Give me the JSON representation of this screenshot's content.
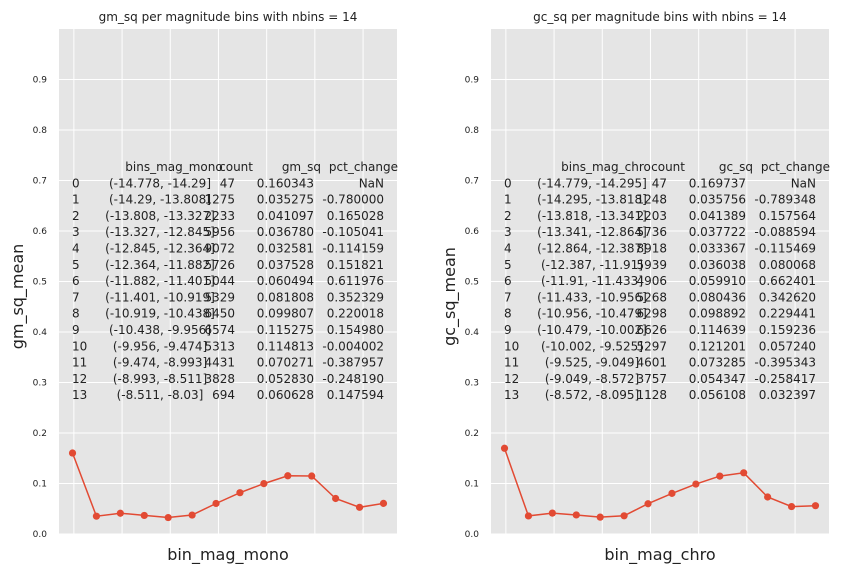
{
  "chart_data": [
    {
      "type": "line",
      "title": "gm_sq per magnitude bins with nbins = 14",
      "xlabel": "bin_mag_mono",
      "ylabel": "gm_sq_mean",
      "ylim": [
        0,
        1.0
      ],
      "yticks": [
        "0.0",
        "0.1",
        "0.2",
        "0.3",
        "0.4",
        "0.5",
        "0.6",
        "0.7",
        "0.8",
        "0.9"
      ],
      "grid": true,
      "line_color": "#E24A33",
      "x": [
        0,
        1,
        2,
        3,
        4,
        5,
        6,
        7,
        8,
        9,
        10,
        11,
        12,
        13
      ],
      "values": [
        0.160343,
        0.035275,
        0.041097,
        0.03678,
        0.032581,
        0.037528,
        0.060494,
        0.081808,
        0.099807,
        0.115275,
        0.114813,
        0.070271,
        0.05283,
        0.060628
      ],
      "table": {
        "columns": [
          "",
          "bins_mag_mono",
          "count",
          "gm_sq",
          "pct_change"
        ],
        "rows": [
          [
            "0",
            "(-14.778, -14.29]",
            "47",
            "0.160343",
            "NaN"
          ],
          [
            "1",
            "(-14.29, -13.808]",
            "1275",
            "0.035275",
            "-0.780000"
          ],
          [
            "2",
            "(-13.808, -13.327]",
            "2233",
            "0.041097",
            "0.165028"
          ],
          [
            "3",
            "(-13.327, -12.845]",
            "5956",
            "0.036780",
            "-0.105041"
          ],
          [
            "4",
            "(-12.845, -12.364]",
            "9072",
            "0.032581",
            "-0.114159"
          ],
          [
            "5",
            "(-12.364, -11.882]",
            "5726",
            "0.037528",
            "0.151821"
          ],
          [
            "6",
            "(-11.882, -11.401]",
            "5044",
            "0.060494",
            "0.611976"
          ],
          [
            "7",
            "(-11.401, -10.919]",
            "5329",
            "0.081808",
            "0.352329"
          ],
          [
            "8",
            "(-10.919, -10.438]",
            "6450",
            "0.099807",
            "0.220018"
          ],
          [
            "9",
            "(-10.438, -9.956]",
            "6574",
            "0.115275",
            "0.154980"
          ],
          [
            "10",
            "(-9.956, -9.474]",
            "5313",
            "0.114813",
            "-0.004002"
          ],
          [
            "11",
            "(-9.474, -8.993]",
            "4431",
            "0.070271",
            "-0.387957"
          ],
          [
            "12",
            "(-8.993, -8.511]",
            "3828",
            "0.052830",
            "-0.248190"
          ],
          [
            "13",
            "(-8.511, -8.03]",
            "694",
            "0.060628",
            "0.147594"
          ]
        ]
      }
    },
    {
      "type": "line",
      "title": "gc_sq per magnitude bins with nbins = 14",
      "xlabel": "bin_mag_chro",
      "ylabel": "gc_sq_mean",
      "ylim": [
        0,
        1.0
      ],
      "yticks": [
        "0.0",
        "0.1",
        "0.2",
        "0.3",
        "0.4",
        "0.5",
        "0.6",
        "0.7",
        "0.8",
        "0.9"
      ],
      "grid": true,
      "line_color": "#E24A33",
      "x": [
        0,
        1,
        2,
        3,
        4,
        5,
        6,
        7,
        8,
        9,
        10,
        11,
        12,
        13
      ],
      "values": [
        0.169737,
        0.035756,
        0.041389,
        0.037722,
        0.033367,
        0.036038,
        0.05991,
        0.080436,
        0.098892,
        0.114639,
        0.121201,
        0.073285,
        0.054347,
        0.056108
      ],
      "table": {
        "columns": [
          "",
          "bins_mag_chro",
          "count",
          "gc_sq",
          "pct_change"
        ],
        "rows": [
          [
            "0",
            "(-14.779, -14.295]",
            "47",
            "0.169737",
            "NaN"
          ],
          [
            "1",
            "(-14.295, -13.818]",
            "1248",
            "0.035756",
            "-0.789348"
          ],
          [
            "2",
            "(-13.818, -13.341]",
            "2203",
            "0.041389",
            "0.157564"
          ],
          [
            "3",
            "(-13.341, -12.864]",
            "5736",
            "0.037722",
            "-0.088594"
          ],
          [
            "4",
            "(-12.864, -12.387]",
            "8918",
            "0.033367",
            "-0.115469"
          ],
          [
            "5",
            "(-12.387, -11.91]",
            "5939",
            "0.036038",
            "0.080068"
          ],
          [
            "6",
            "(-11.91, -11.433]",
            "4906",
            "0.059910",
            "0.662401"
          ],
          [
            "7",
            "(-11.433, -10.956]",
            "5268",
            "0.080436",
            "0.342620"
          ],
          [
            "8",
            "(-10.956, -10.479]",
            "6298",
            "0.098892",
            "0.229441"
          ],
          [
            "9",
            "(-10.479, -10.002]",
            "6626",
            "0.114639",
            "0.159236"
          ],
          [
            "10",
            "(-10.002, -9.525]",
            "5297",
            "0.121201",
            "0.057240"
          ],
          [
            "11",
            "(-9.525, -9.049]",
            "4601",
            "0.073285",
            "-0.395343"
          ],
          [
            "12",
            "(-9.049, -8.572]",
            "3757",
            "0.054347",
            "-0.258417"
          ],
          [
            "13",
            "(-8.572, -8.095]",
            "1128",
            "0.056108",
            "0.032397"
          ]
        ]
      }
    }
  ]
}
